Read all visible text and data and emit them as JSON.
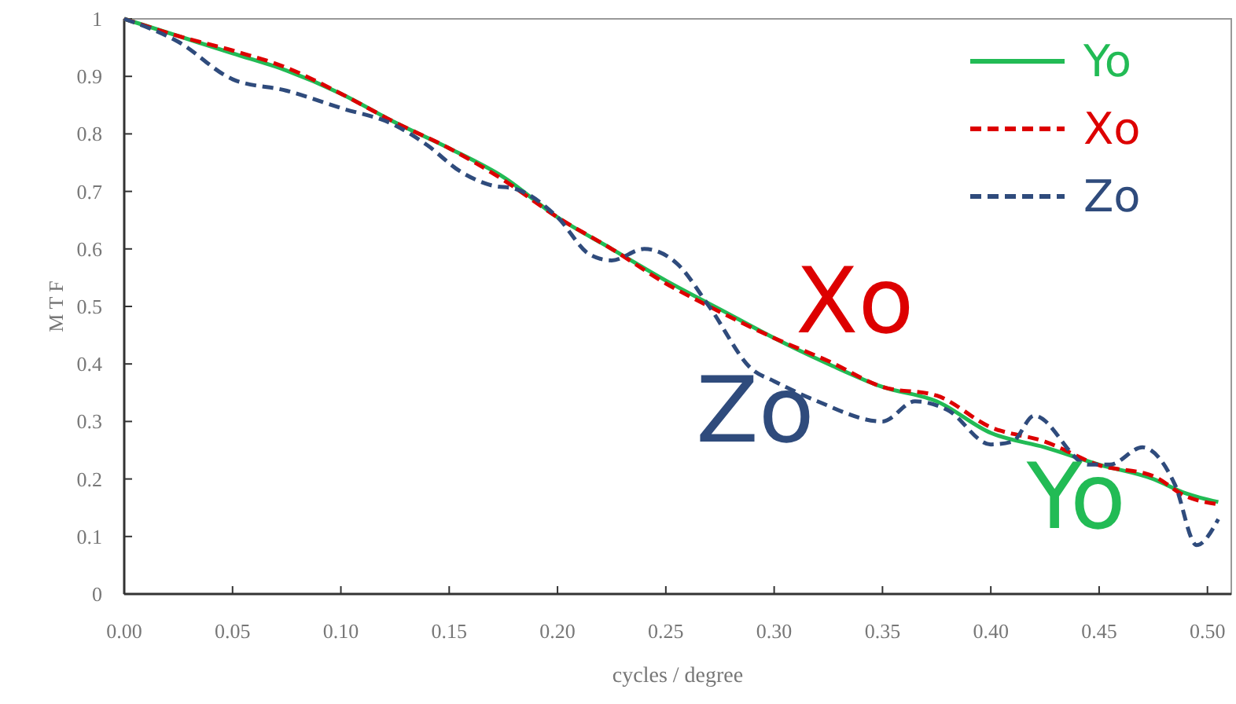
{
  "chart_data": {
    "type": "line",
    "xlabel": "cycles / degree",
    "ylabel": "M T F",
    "xlim": [
      0,
      0.511
    ],
    "ylim": [
      0,
      1
    ],
    "xticks": [
      {
        "value": 0,
        "label": "0.00"
      },
      {
        "value": 0.05,
        "label": "0.05"
      },
      {
        "value": 0.1,
        "label": "0.10"
      },
      {
        "value": 0.15,
        "label": "0.15"
      },
      {
        "value": 0.2,
        "label": "0.20"
      },
      {
        "value": 0.25,
        "label": "0.25"
      },
      {
        "value": 0.3,
        "label": "0.30"
      },
      {
        "value": 0.35,
        "label": "0.35"
      },
      {
        "value": 0.4,
        "label": "0.40"
      },
      {
        "value": 0.45,
        "label": "0.45"
      },
      {
        "value": 0.5,
        "label": "0.50"
      }
    ],
    "yticks": [
      0,
      0.1,
      0.2,
      0.3,
      0.4,
      0.5,
      0.6,
      0.7,
      0.8,
      0.9,
      1
    ],
    "legend": "top right",
    "grid": false,
    "series": [
      {
        "name": "Yo",
        "color": "#22bb55",
        "line_style": "solid",
        "x": [
          0,
          0.025,
          0.05,
          0.075,
          0.1,
          0.125,
          0.15,
          0.175,
          0.2,
          0.225,
          0.25,
          0.275,
          0.3,
          0.325,
          0.35,
          0.375,
          0.4,
          0.425,
          0.45,
          0.475,
          0.49,
          0.505
        ],
        "values": [
          1,
          0.97,
          0.94,
          0.91,
          0.87,
          0.82,
          0.775,
          0.725,
          0.655,
          0.6,
          0.545,
          0.495,
          0.445,
          0.4,
          0.36,
          0.335,
          0.28,
          0.255,
          0.225,
          0.2,
          0.175,
          0.16
        ]
      },
      {
        "name": "Xo",
        "color": "#dd0000",
        "line_style": "dashed",
        "x": [
          0,
          0.025,
          0.05,
          0.075,
          0.1,
          0.125,
          0.15,
          0.175,
          0.2,
          0.225,
          0.25,
          0.27,
          0.3,
          0.325,
          0.35,
          0.375,
          0.4,
          0.425,
          0.45,
          0.475,
          0.49,
          0.505
        ],
        "values": [
          1,
          0.97,
          0.945,
          0.915,
          0.87,
          0.82,
          0.775,
          0.72,
          0.655,
          0.6,
          0.54,
          0.5,
          0.445,
          0.405,
          0.36,
          0.345,
          0.29,
          0.265,
          0.224,
          0.205,
          0.17,
          0.156
        ]
      },
      {
        "name": "Zo",
        "color": "#2f4b7c",
        "line_style": "dashed",
        "x": [
          0,
          0.025,
          0.05,
          0.075,
          0.1,
          0.125,
          0.14,
          0.155,
          0.17,
          0.18,
          0.2,
          0.215,
          0.225,
          0.24,
          0.255,
          0.27,
          0.29,
          0.3,
          0.32,
          0.35,
          0.365,
          0.38,
          0.4,
          0.41,
          0.42,
          0.445,
          0.455,
          0.47,
          0.485,
          0.495,
          0.505
        ],
        "values": [
          1,
          0.96,
          0.895,
          0.875,
          0.845,
          0.815,
          0.78,
          0.735,
          0.71,
          0.705,
          0.655,
          0.59,
          0.58,
          0.6,
          0.575,
          0.5,
          0.39,
          0.37,
          0.335,
          0.3,
          0.335,
          0.32,
          0.26,
          0.265,
          0.31,
          0.225,
          0.225,
          0.255,
          0.19,
          0.085,
          0.13
        ]
      }
    ],
    "annotations": [
      "Yo",
      "Xo",
      "Zo"
    ]
  }
}
